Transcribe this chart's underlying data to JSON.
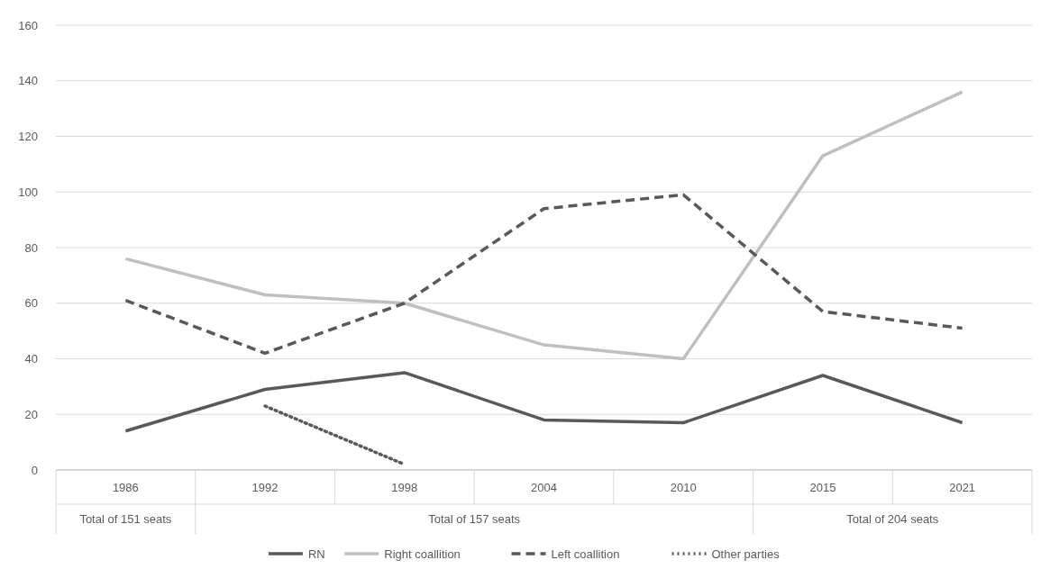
{
  "chart_data": {
    "type": "line",
    "categories": [
      "1986",
      "1992",
      "1998",
      "2004",
      "2010",
      "2015",
      "2021"
    ],
    "series": [
      {
        "name": "RN",
        "color": "#595959",
        "line_style": "solid",
        "values": [
          14,
          29,
          35,
          18,
          17,
          34,
          17
        ]
      },
      {
        "name": "Right coallition",
        "color": "#bfbfbf",
        "line_style": "solid",
        "values": [
          76,
          63,
          60,
          45,
          40,
          113,
          136
        ]
      },
      {
        "name": "Left coallition",
        "color": "#595959",
        "line_style": "dashed",
        "values": [
          61,
          42,
          60,
          94,
          99,
          57,
          51
        ]
      },
      {
        "name": "Other parties",
        "color": "#595959",
        "line_style": "dotted",
        "values": [
          null,
          23,
          2,
          null,
          null,
          null,
          null
        ]
      }
    ],
    "ylim": [
      0,
      160
    ],
    "yticks": [
      0,
      20,
      40,
      60,
      80,
      100,
      120,
      140,
      160
    ],
    "grid": "y",
    "legend": "bottom",
    "marker": "none",
    "annotations": [
      "Total of 151 seats",
      "Total of 157 seats",
      "Total of 204 seats"
    ]
  }
}
